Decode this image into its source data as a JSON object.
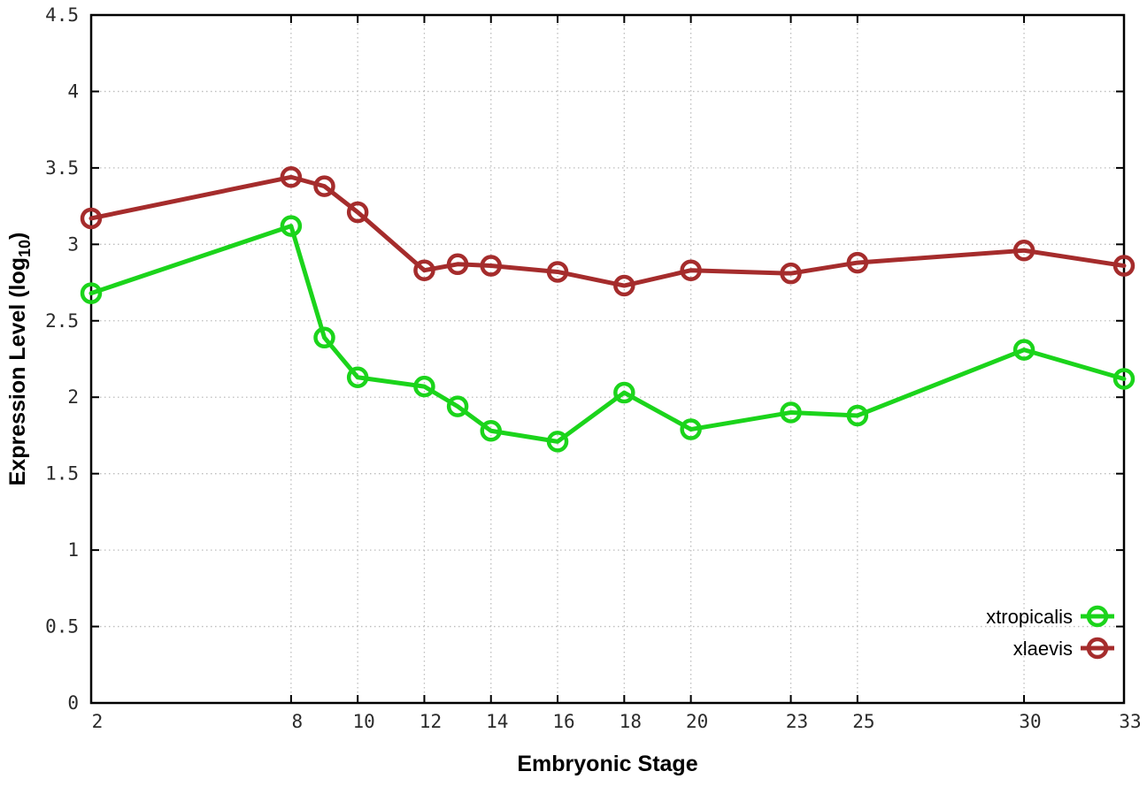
{
  "chart_data": {
    "type": "line",
    "xlabel": "Embryonic Stage",
    "ylabel": {
      "pre": "Expression Level (log",
      "sub": "10",
      "post": ")"
    },
    "x": [
      2,
      8,
      9,
      10,
      12,
      13,
      14,
      16,
      18,
      20,
      23,
      25,
      30,
      33
    ],
    "series": [
      {
        "name": "xtropicalis",
        "color": "#1bd41b",
        "values": [
          2.68,
          3.12,
          2.39,
          2.13,
          2.07,
          1.94,
          1.78,
          1.71,
          2.03,
          1.79,
          1.9,
          1.88,
          2.31,
          2.12
        ]
      },
      {
        "name": "xlaevis",
        "color": "#a52c2c",
        "values": [
          3.17,
          3.44,
          3.38,
          3.21,
          2.83,
          2.87,
          2.86,
          2.82,
          2.73,
          2.83,
          2.81,
          2.88,
          2.96,
          2.86
        ]
      }
    ],
    "x_ticks": [
      2,
      8,
      10,
      12,
      14,
      16,
      18,
      20,
      23,
      25,
      30,
      33
    ],
    "y_ticks": [
      0,
      0.5,
      1,
      1.5,
      2,
      2.5,
      3,
      3.5,
      4,
      4.5
    ],
    "x_tick_labels": [
      "2",
      "8",
      "10",
      "12",
      "14",
      "16",
      "18",
      "20",
      "23",
      "25",
      "30",
      "33"
    ],
    "y_tick_labels": [
      "0",
      "0.5",
      "1",
      "1.5",
      "2",
      "2.5",
      "3",
      "3.5",
      "4",
      "4.5"
    ],
    "xlim": [
      2,
      33
    ],
    "ylim": [
      0,
      4.5
    ],
    "grid": true,
    "legend_position": "bottom-right",
    "colors": {
      "background": "#ffffff",
      "grid": "#bdbdbd",
      "axis": "#000000",
      "tick_label": "#2b2b2b"
    }
  }
}
